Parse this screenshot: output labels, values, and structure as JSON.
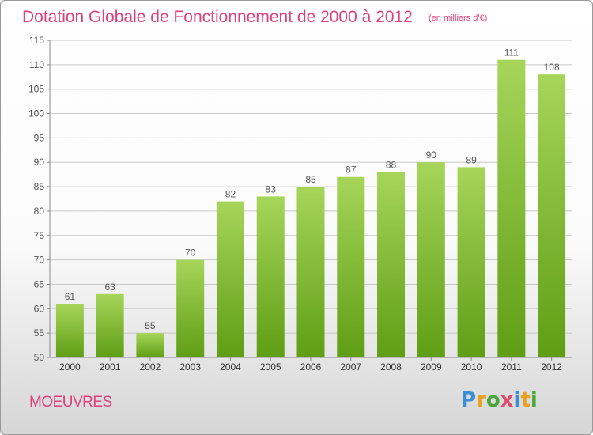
{
  "header": {
    "title": "Dotation Globale de Fonctionnement de 2000 à 2012",
    "unit": "(en milliers d'€)"
  },
  "footer": {
    "commune": "MOEUVRES",
    "logo_text": "Proxiti"
  },
  "colors": {
    "title": "#e0407a",
    "bar_light": "#a6d55a",
    "bar_dark": "#5f9e14",
    "grid": "#c8c8c8",
    "text": "#555555"
  },
  "chart_data": {
    "type": "bar",
    "title": "Dotation Globale de Fonctionnement de 2000 à 2012",
    "subtitle": "(en milliers d'€)",
    "xlabel": "",
    "ylabel": "",
    "categories": [
      "2000",
      "2001",
      "2002",
      "2003",
      "2004",
      "2005",
      "2006",
      "2007",
      "2008",
      "2009",
      "2010",
      "2011",
      "2012"
    ],
    "values": [
      61,
      63,
      55,
      70,
      82,
      83,
      85,
      87,
      88,
      90,
      89,
      111,
      108
    ],
    "ylim": [
      50,
      115
    ],
    "yticks": [
      50,
      55,
      60,
      65,
      70,
      75,
      80,
      85,
      90,
      95,
      100,
      105,
      110,
      115
    ],
    "grid": true,
    "legend": "none"
  }
}
